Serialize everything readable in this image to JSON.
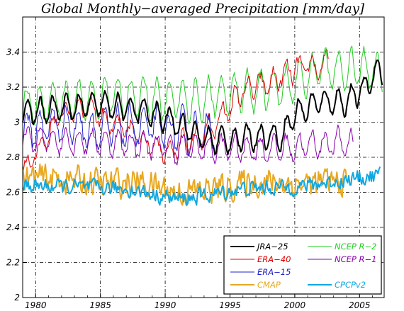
{
  "chart_data": {
    "type": "line",
    "title": "Global Monthly−averaged Precipitation [mm/day]",
    "xlabel": "",
    "ylabel": "",
    "xlim": [
      1979.0,
      2006.9
    ],
    "ylim": [
      2.0,
      3.6
    ],
    "x_ticks": [
      1980,
      1985,
      1990,
      1995,
      2000,
      2005
    ],
    "y_ticks": [
      2,
      2.2,
      2.4,
      2.6,
      2.8,
      3,
      3.2,
      3.4
    ],
    "grid": true,
    "legend_position": "bottom-right",
    "series": [
      {
        "name": "JRA−25",
        "color": "#000000",
        "width": 2.0,
        "start": 1979.0,
        "end": 2006.8,
        "knots": [
          [
            1979,
            3.05
          ],
          [
            1982,
            3.08
          ],
          [
            1985,
            3.1
          ],
          [
            1988,
            3.07
          ],
          [
            1991,
            3.0
          ],
          [
            1993,
            2.9
          ],
          [
            1995,
            2.9
          ],
          [
            1997,
            2.92
          ],
          [
            1999,
            2.92
          ],
          [
            2000,
            3.05
          ],
          [
            2002,
            3.12
          ],
          [
            2004,
            3.12
          ],
          [
            2005.5,
            3.2
          ],
          [
            2006.3,
            3.3
          ],
          [
            2006.8,
            3.28
          ]
        ],
        "amp": 0.07,
        "noise": 0.02
      },
      {
        "name": "NCEP R−2",
        "color": "#22cc22",
        "width": 1.0,
        "start": 1979.0,
        "end": 2006.8,
        "knots": [
          [
            1979,
            3.1
          ],
          [
            1982,
            3.12
          ],
          [
            1985,
            3.15
          ],
          [
            1988,
            3.15
          ],
          [
            1991,
            3.12
          ],
          [
            1994,
            3.15
          ],
          [
            1997,
            3.18
          ],
          [
            2000,
            3.22
          ],
          [
            2002,
            3.32
          ],
          [
            2004,
            3.3
          ],
          [
            2006,
            3.3
          ],
          [
            2006.8,
            3.25
          ]
        ],
        "amp": 0.11,
        "noise": 0.03
      },
      {
        "name": "ERA−40",
        "color": "#dd0000",
        "width": 1.0,
        "start": 1979.0,
        "end": 2002.6,
        "knots": [
          [
            1979,
            2.7
          ],
          [
            1980,
            2.82
          ],
          [
            1982,
            3.05
          ],
          [
            1984,
            3.1
          ],
          [
            1986,
            2.98
          ],
          [
            1988,
            2.92
          ],
          [
            1990,
            2.85
          ],
          [
            1992,
            2.88
          ],
          [
            1994,
            3.0
          ],
          [
            1996,
            3.18
          ],
          [
            1998,
            3.22
          ],
          [
            2000,
            3.3
          ],
          [
            2002,
            3.32
          ],
          [
            2002.6,
            3.34
          ]
        ],
        "amp": 0.06,
        "noise": 0.035
      },
      {
        "name": "NCEP R−1",
        "color": "#8800aa",
        "width": 1.0,
        "start": 1979.0,
        "end": 2004.5,
        "knots": [
          [
            1979,
            2.9
          ],
          [
            1983,
            2.9
          ],
          [
            1987,
            2.88
          ],
          [
            1991,
            2.85
          ],
          [
            1995,
            2.85
          ],
          [
            1999,
            2.85
          ],
          [
            2002,
            2.88
          ],
          [
            2004.5,
            2.88
          ]
        ],
        "amp": 0.07,
        "noise": 0.03
      },
      {
        "name": "ERA−15",
        "color": "#2222cc",
        "width": 1.0,
        "start": 1979.0,
        "end": 1993.9,
        "knots": [
          [
            1979,
            2.95
          ],
          [
            1982,
            3.0
          ],
          [
            1985,
            2.95
          ],
          [
            1988,
            2.98
          ],
          [
            1991,
            2.95
          ],
          [
            1993.9,
            2.95
          ]
        ],
        "amp": 0.1,
        "noise": 0.045
      },
      {
        "name": "CMAP",
        "color": "#e8a820",
        "width": 2.0,
        "start": 1979.0,
        "end": 2004.0,
        "knots": [
          [
            1979,
            2.68
          ],
          [
            1982,
            2.68
          ],
          [
            1985,
            2.65
          ],
          [
            1988,
            2.66
          ],
          [
            1991,
            2.6
          ],
          [
            1994,
            2.62
          ],
          [
            1997,
            2.66
          ],
          [
            2000,
            2.65
          ],
          [
            2004,
            2.66
          ]
        ],
        "amp": 0.0,
        "noise": 0.075
      },
      {
        "name": "CPCPv2",
        "color": "#10a8e0",
        "width": 2.0,
        "start": 1979.0,
        "end": 2006.6,
        "knots": [
          [
            1979,
            2.64
          ],
          [
            1983,
            2.63
          ],
          [
            1987,
            2.62
          ],
          [
            1991,
            2.56
          ],
          [
            1993,
            2.58
          ],
          [
            1996,
            2.62
          ],
          [
            2000,
            2.63
          ],
          [
            2003,
            2.66
          ],
          [
            2006.6,
            2.7
          ]
        ],
        "amp": 0.0,
        "noise": 0.04
      }
    ],
    "legend_layout": [
      [
        "JRA−25",
        "NCEP R−2"
      ],
      [
        "ERA−40",
        "NCEP R−1"
      ],
      [
        "ERA−15",
        ""
      ],
      [
        "CMAP",
        "CPCPv2"
      ]
    ]
  }
}
